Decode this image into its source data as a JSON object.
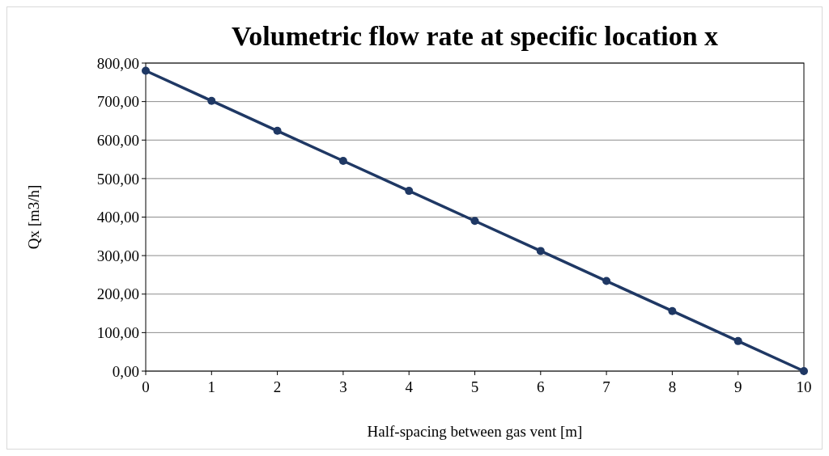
{
  "chart_data": {
    "type": "line",
    "title": "Volumetric flow rate at specific location x",
    "xlabel": "Half-spacing between  gas vent [m]",
    "ylabel": "Qx [m3/h]",
    "x": [
      0,
      1,
      2,
      3,
      4,
      5,
      6,
      7,
      8,
      9,
      10
    ],
    "series": [
      {
        "color": "#1f3864",
        "values": [
          780,
          702,
          624,
          546,
          468,
          390,
          312,
          234,
          156,
          78,
          0
        ]
      }
    ],
    "xlim": [
      0,
      10
    ],
    "xticks": [
      0,
      1,
      2,
      3,
      4,
      5,
      6,
      7,
      8,
      9,
      10
    ],
    "ylim": [
      0,
      800
    ],
    "yticks": [
      {
        "value": 0,
        "label": "0,00"
      },
      {
        "value": 100,
        "label": "100,00"
      },
      {
        "value": 200,
        "label": "200,00"
      },
      {
        "value": 300,
        "label": "300,00"
      },
      {
        "value": 400,
        "label": "400,00"
      },
      {
        "value": 500,
        "label": "500,00"
      },
      {
        "value": 600,
        "label": "600,00"
      },
      {
        "value": 700,
        "label": "700,00"
      },
      {
        "value": 800,
        "label": "800,00"
      }
    ],
    "grid": "y",
    "marker": "circle",
    "line_style": "solid"
  }
}
